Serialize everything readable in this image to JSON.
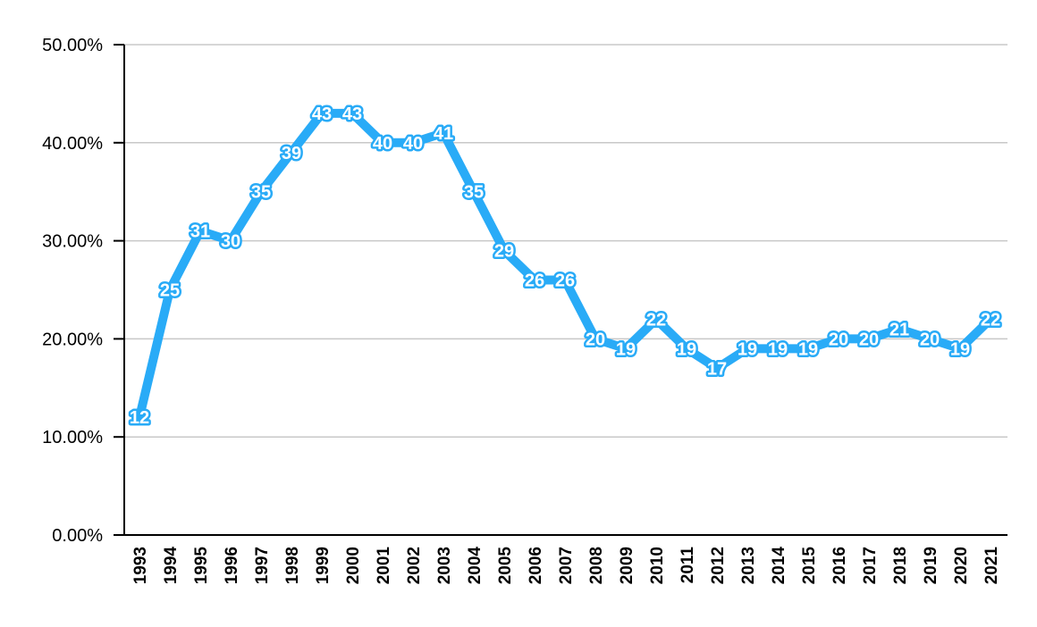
{
  "chart_data": {
    "type": "line",
    "categories": [
      "1993",
      "1994",
      "1995",
      "1996",
      "1997",
      "1998",
      "1999",
      "2000",
      "2001",
      "2002",
      "2003",
      "2004",
      "2005",
      "2006",
      "2007",
      "2008",
      "2009",
      "2010",
      "2011",
      "2012",
      "2013",
      "2014",
      "2015",
      "2016",
      "2017",
      "2018",
      "2019",
      "2020",
      "2021"
    ],
    "series": [
      {
        "values": [
          12,
          25,
          31,
          30,
          35,
          39,
          43,
          43,
          40,
          40,
          41,
          35,
          29,
          26,
          26,
          20,
          19,
          22,
          19,
          17,
          19,
          19,
          19,
          20,
          20,
          21,
          20,
          19,
          22
        ]
      }
    ],
    "data_labels": [
      "12",
      "25",
      "31",
      "30",
      "35",
      "39",
      "43",
      "43",
      "40",
      "40",
      "41",
      "35",
      "29",
      "26",
      "26",
      "20",
      "19",
      "22",
      "19",
      "17",
      "19",
      "19",
      "19",
      "20",
      "20",
      "21",
      "20",
      "19",
      "22"
    ],
    "y_ticks": [
      "0.00%",
      "10.00%",
      "20.00%",
      "30.00%",
      "40.00%",
      "50.00%"
    ],
    "ylim": [
      0,
      50
    ],
    "y_unit": "percent",
    "grid": true,
    "legend": "none",
    "colors": {
      "line": "#29ABF7",
      "grid": "#C8C8C8",
      "axis": "#000000"
    }
  }
}
